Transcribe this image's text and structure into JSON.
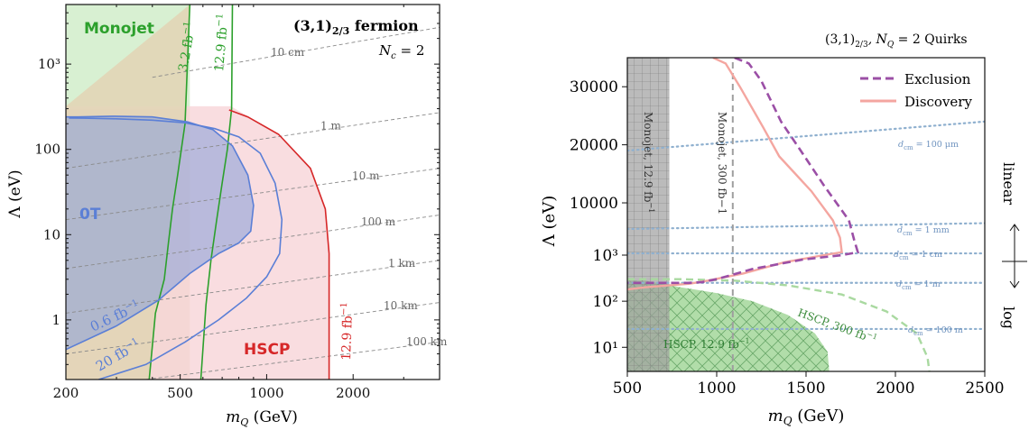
{
  "chart_data": [
    {
      "type": "line",
      "title": "(3,1)2/3 fermion",
      "title_main": "(3,1)",
      "title_sub": "2/3",
      "title_rest": " fermion",
      "subtitle": "Nc = 2",
      "subtitle_var": "N",
      "subtitle_sub": "c",
      "subtitle_rest": " = 2",
      "xlabel": "mQ (GeV)",
      "xlabel_var": "m",
      "xlabel_sub": "Q",
      "xlabel_rest": " (GeV)",
      "ylabel": "Λ (eV)",
      "x_scale": "log",
      "y_scale": "log",
      "xlim": [
        200,
        4000
      ],
      "ylim": [
        0.2,
        5000
      ],
      "x_ticks": [
        {
          "v": 200,
          "label": "200"
        },
        {
          "v": 500,
          "label": "500"
        },
        {
          "v": 1000,
          "label": "1000"
        },
        {
          "v": 2000,
          "label": "2000"
        }
      ],
      "y_ticks": [
        {
          "v": 1,
          "label": "1"
        },
        {
          "v": 10,
          "label": "10"
        },
        {
          "v": 100,
          "label": "100"
        },
        {
          "v": 1000,
          "label": "10³"
        }
      ],
      "colors": {
        "monojet": "#2ca02c",
        "hscp": "#d62728",
        "zero_t": "#5b7fd6",
        "monojet_fill": "#d8f0d2",
        "hscp_fill": "#f8d7da",
        "zero_t_fill": "#8da3d9",
        "tan_fill": "#e2d5b6",
        "contour": "#8a8a8a"
      },
      "regions": [
        {
          "name": "Monojet",
          "points": [
            [
              200,
              300
            ],
            [
              540,
              300
            ],
            [
              540,
              5000
            ],
            [
              200,
              5000
            ]
          ]
        },
        {
          "name": "HSCP",
          "points": [
            [
              200,
              0.2
            ],
            [
              1650,
              0.2
            ],
            [
              1650,
              6
            ],
            [
              1600,
              20
            ],
            [
              1420,
              60
            ],
            [
              1100,
              150
            ],
            [
              870,
              240
            ],
            [
              750,
              320
            ],
            [
              200,
              320
            ]
          ]
        },
        {
          "name": "0T",
          "points": [
            [
              200,
              0.45
            ],
            [
              300,
              0.85
            ],
            [
              420,
              1.7
            ],
            [
              540,
              3.5
            ],
            [
              680,
              6
            ],
            [
              800,
              8
            ],
            [
              880,
              11
            ],
            [
              900,
              22
            ],
            [
              860,
              50
            ],
            [
              760,
              110
            ],
            [
              650,
              170
            ],
            [
              530,
              210
            ],
            [
              400,
              240
            ],
            [
              290,
              245
            ],
            [
              220,
              240
            ],
            [
              200,
              240
            ]
          ]
        }
      ],
      "series": [
        {
          "name": "3.2 fb−1",
          "label_num": "3.2 fb",
          "label_exp": "−1",
          "x": [
            540,
            520,
            490,
            470,
            455,
            440,
            410,
            390
          ],
          "y": [
            5000,
            200,
            50,
            20,
            8,
            3,
            1.2,
            0.2
          ]
        },
        {
          "name": "12.9 fb−1",
          "label_num": "12.9 fb",
          "label_exp": "−1",
          "x": [
            760,
            755,
            730,
            700,
            670,
            640,
            615,
            590
          ],
          "y": [
            5000,
            300,
            100,
            40,
            15,
            5,
            1.5,
            0.2
          ]
        },
        {
          "name": "12.9 fb−1 HSCP",
          "label_num": "12.9 fb",
          "label_exp": "−1",
          "x": [
            740,
            860,
            1100,
            1420,
            1600,
            1650,
            1650
          ],
          "y": [
            290,
            240,
            150,
            60,
            20,
            6,
            0.2
          ]
        },
        {
          "name": "0.6 fb−1",
          "label_num": "0.6 fb",
          "label_exp": "−1",
          "x": [
            200,
            300,
            420,
            540,
            680,
            800,
            880,
            900,
            860,
            760,
            650,
            530,
            400,
            290,
            220,
            200
          ],
          "y": [
            0.45,
            0.85,
            1.7,
            3.5,
            6,
            8,
            11,
            22,
            50,
            110,
            170,
            210,
            240,
            245,
            240,
            240
          ]
        },
        {
          "name": "20 fb−1",
          "label_num": "20 fb",
          "label_exp": "−1",
          "x": [
            260,
            380,
            520,
            680,
            850,
            1000,
            1110,
            1130,
            1070,
            950,
            800,
            660,
            520,
            400,
            300,
            230,
            205
          ],
          "y": [
            0.2,
            0.3,
            0.55,
            1.0,
            1.8,
            3.2,
            6,
            15,
            40,
            90,
            140,
            175,
            205,
            220,
            228,
            232,
            233
          ]
        }
      ],
      "contours": [
        {
          "label": "10 cm",
          "x": [
            400,
            4000
          ],
          "y": [
            700,
            2700
          ]
        },
        {
          "label": "1 m",
          "x": [
            200,
            4000
          ],
          "y": [
            60,
            270
          ]
        },
        {
          "label": "10 m",
          "x": [
            200,
            4000
          ],
          "y": [
            15,
            60
          ]
        },
        {
          "label": "100 m",
          "x": [
            200,
            4000
          ],
          "y": [
            4,
            17
          ]
        },
        {
          "label": "1 km",
          "x": [
            200,
            4000
          ],
          "y": [
            1.2,
            5
          ]
        },
        {
          "label": "10 km",
          "x": [
            200,
            4000
          ],
          "y": [
            0.4,
            1.6
          ]
        },
        {
          "label": "100 km",
          "x": [
            380,
            4000
          ],
          "y": [
            0.2,
            0.55
          ]
        }
      ],
      "annotations": [
        {
          "text": "Monojet"
        },
        {
          "text": "HSCP"
        },
        {
          "text": "0T"
        }
      ]
    },
    {
      "type": "line",
      "title": "(3,1)2/3, NQ = 2 Quirks",
      "title_main": "(3,1)",
      "title_sub": "2/3",
      "title_rest": ",  N",
      "title_var_sub": "Q",
      "title_tail": " = 2 Quirks",
      "xlabel": "mQ (GeV)",
      "xlabel_var": "m",
      "xlabel_sub": "Q",
      "xlabel_rest": " (GeV)",
      "ylabel": "Λ (eV)",
      "y_scale_note": "linear above 10³, log below",
      "side_label_top": "linear",
      "side_label_bottom": "log",
      "xlim": [
        500,
        2500
      ],
      "x_ticks": [
        {
          "v": 500,
          "label": "500"
        },
        {
          "v": 1000,
          "label": "1000"
        },
        {
          "v": 1500,
          "label": "1500"
        },
        {
          "v": 2000,
          "label": "2000"
        },
        {
          "v": 2500,
          "label": "2500"
        }
      ],
      "y_ticks": [
        {
          "v": 10,
          "label": "10¹"
        },
        {
          "v": 100,
          "label": "10²"
        },
        {
          "v": 1000,
          "label": "10³"
        },
        {
          "v": 10000,
          "label": "10000"
        },
        {
          "v": 20000,
          "label": "20000"
        },
        {
          "v": 30000,
          "label": "30000"
        }
      ],
      "colors": {
        "exclusion": "#9b4fa6",
        "discovery": "#f4a6a0",
        "monojet_band": "#9e9e9e",
        "hscp": "#5cb85c",
        "hscp_fill": "#a9d9a0",
        "dcm": "#8fb0cf",
        "monojet300": "#9e9e9e"
      },
      "legend": [
        {
          "label": "Exclusion",
          "style": "dashed"
        },
        {
          "label": "Discovery",
          "style": "solid"
        }
      ],
      "legend_placement": "top-right",
      "series": [
        {
          "name": "Exclusion",
          "x": [
            1100,
            1180,
            1250,
            1360,
            1470,
            1600,
            1740,
            1770,
            1790,
            1700,
            1480,
            1200,
            1000,
            920,
            840,
            700,
            500
          ],
          "y": [
            35000,
            34000,
            31000,
            24000,
            19000,
            13000,
            7000,
            3500,
            1500,
            1000,
            800,
            500,
            300,
            260,
            250,
            250,
            250
          ]
        },
        {
          "name": "Discovery",
          "x": [
            980,
            1050,
            1130,
            1260,
            1350,
            1530,
            1650,
            1690,
            1700,
            1600,
            1380,
            1150,
            950,
            850,
            600,
            500
          ],
          "y": [
            35000,
            34000,
            30000,
            23000,
            18000,
            12000,
            7000,
            4000,
            1500,
            1000,
            700,
            400,
            280,
            240,
            200,
            180
          ]
        },
        {
          "name": "Monojet, 300 fb−1",
          "x": [
            1090,
            1090
          ],
          "y": [
            3,
            35000
          ]
        }
      ],
      "regions": [
        {
          "name": "Monojet, 12.9 fb−1",
          "label_main": "Monojet, 12.9 fb",
          "x": [
            500,
            735
          ]
        },
        {
          "name": "HSCP, 12.9 fb−1",
          "label_main": "HSCP, 12.9 fb",
          "x": [
            500,
            600,
            800,
            1000,
            1200,
            1400,
            1550,
            1620,
            1630
          ],
          "y": [
            280,
            280,
            200,
            150,
            100,
            50,
            20,
            8,
            3
          ]
        },
        {
          "name": "HSCP, 300 fb−1",
          "label_main": "HSCP, 300 fb",
          "x": [
            500,
            800,
            1100,
            1400,
            1700,
            1950,
            2120,
            2180,
            2190
          ],
          "y": [
            300,
            300,
            280,
            220,
            140,
            60,
            20,
            6,
            3
          ]
        }
      ],
      "contours": [
        {
          "label": "dcm = 100 μm",
          "label_unit": " = 100 μm",
          "x": [
            500,
            2500
          ],
          "y": [
            19000,
            24000
          ]
        },
        {
          "label": "dcm = 1 mm",
          "label_unit": " = 1 mm",
          "x": [
            500,
            2500
          ],
          "y": [
            5500,
            6500
          ]
        },
        {
          "label": "dcm = 1 cm",
          "label_unit": " = 1 cm",
          "x": [
            500,
            2500
          ],
          "y": [
            1300,
            1300
          ]
        },
        {
          "label": "dcm = 1 m",
          "label_unit": " = 1 m",
          "x": [
            500,
            2500
          ],
          "y": [
            250,
            250
          ]
        },
        {
          "label": "dcm = 100 m",
          "label_unit": " = 100 m",
          "x": [
            500,
            2500
          ],
          "y": [
            25,
            25
          ]
        }
      ]
    }
  ]
}
